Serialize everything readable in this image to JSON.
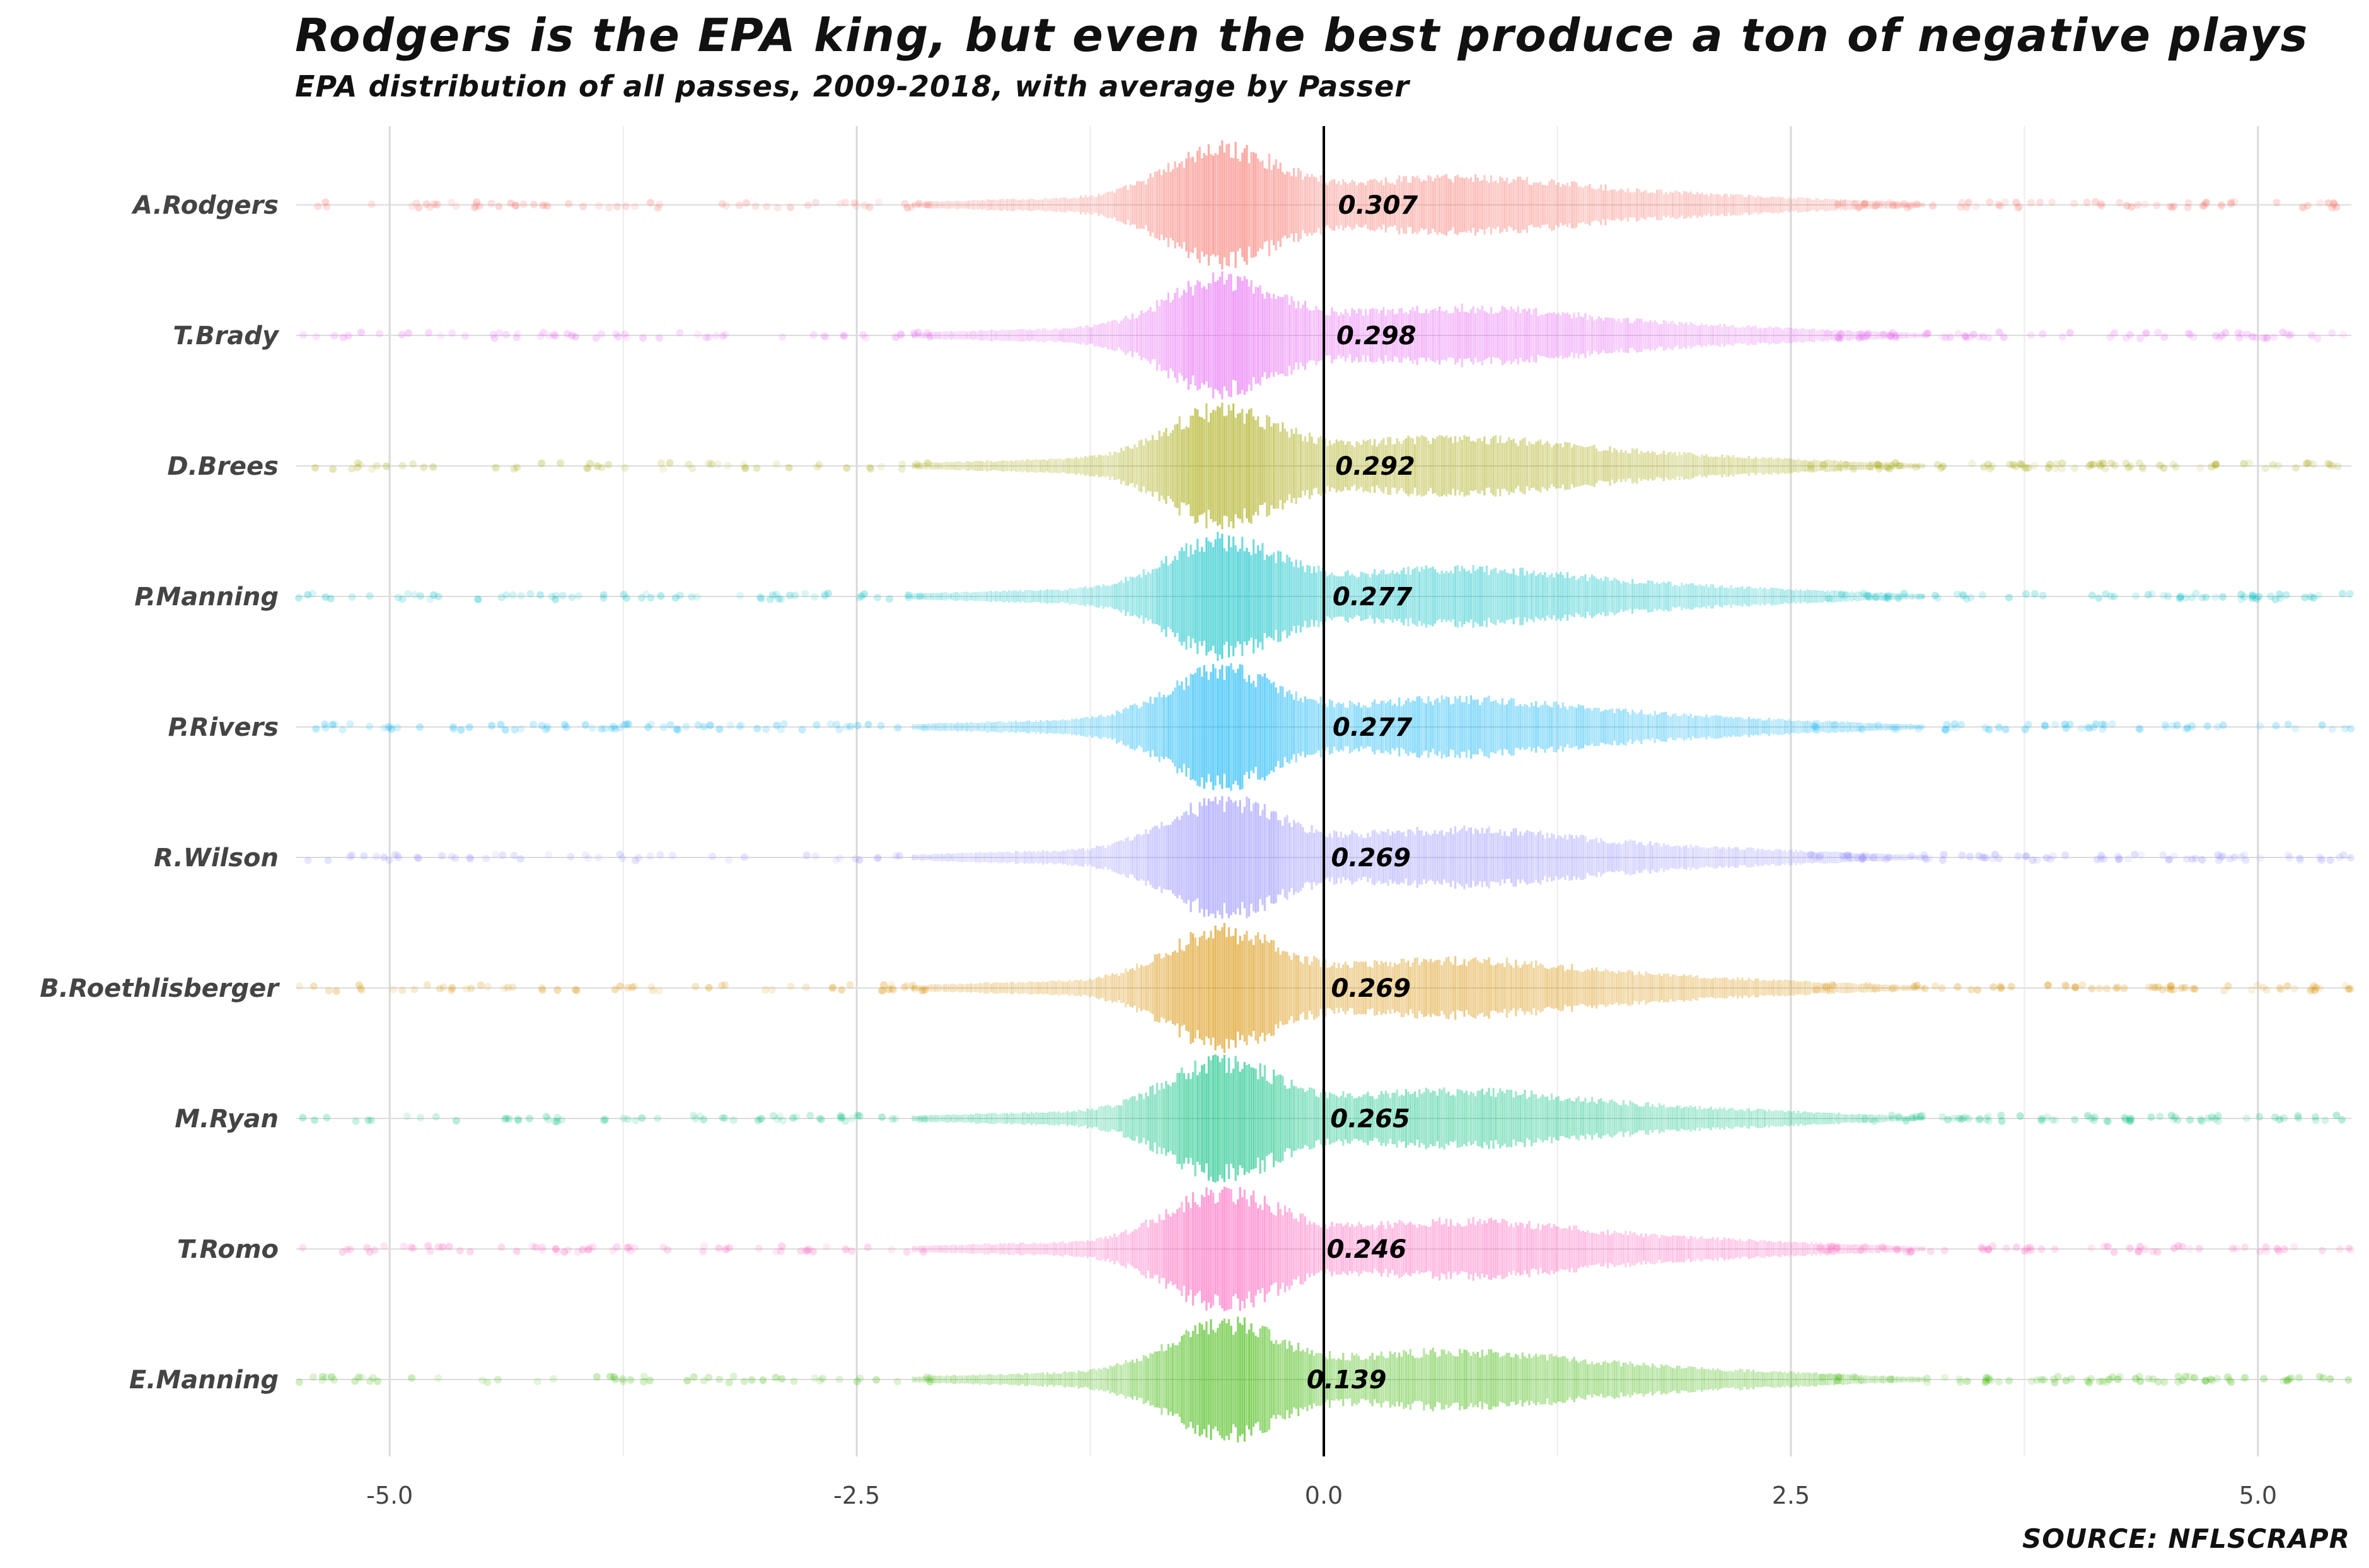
{
  "title": "Rodgers is the EPA king, but even the best produce a ton of negative plays",
  "subtitle": "EPA distribution of all passes, 2009-2018, with average by Passer",
  "caption": "SOURCE: NFLSCRAPR",
  "chart_data": {
    "type": "scatter",
    "description_type": "beeswarm",
    "xlim": [
      -5.5,
      5.5
    ],
    "x_ticks": [
      -5.0,
      -2.5,
      0.0,
      2.5,
      5.0
    ],
    "x_tick_labels": [
      "-5.0",
      "-2.5",
      "0.0",
      "2.5",
      "5.0"
    ],
    "reference_line_x": 0,
    "grid": true,
    "series": [
      {
        "name": "A.Rodgers",
        "mean": 0.307,
        "mean_label": "0.307",
        "color": "#F8766D"
      },
      {
        "name": "T.Brady",
        "mean": 0.298,
        "mean_label": "0.298",
        "color": "#E76BF3"
      },
      {
        "name": "D.Brees",
        "mean": 0.292,
        "mean_label": "0.292",
        "color": "#A3A500"
      },
      {
        "name": "P.Manning",
        "mean": 0.277,
        "mean_label": "0.277",
        "color": "#39B600"
      },
      {
        "name": "P.Rivers",
        "mean": 0.277,
        "mean_label": "0.277",
        "color": "#00B0F6"
      },
      {
        "name": "R.Wilson",
        "mean": 0.269,
        "mean_label": "0.269",
        "color": "#9590FF"
      },
      {
        "name": "B.Roethlisberger",
        "mean": 0.269,
        "mean_label": "0.269",
        "color": "#D89000"
      },
      {
        "name": "M.Ryan",
        "mean": 0.265,
        "mean_label": "0.265",
        "color": "#00BF7D"
      },
      {
        "name": "T.Romo",
        "mean": 0.246,
        "mean_label": "0.246",
        "color": "#FF62BC"
      },
      {
        "name": "E.Manning",
        "mean": 0.139,
        "mean_label": "0.139",
        "color": "#39B600"
      }
    ],
    "series_colors_override": {
      "P.Manning": "#00BFC4"
    }
  }
}
